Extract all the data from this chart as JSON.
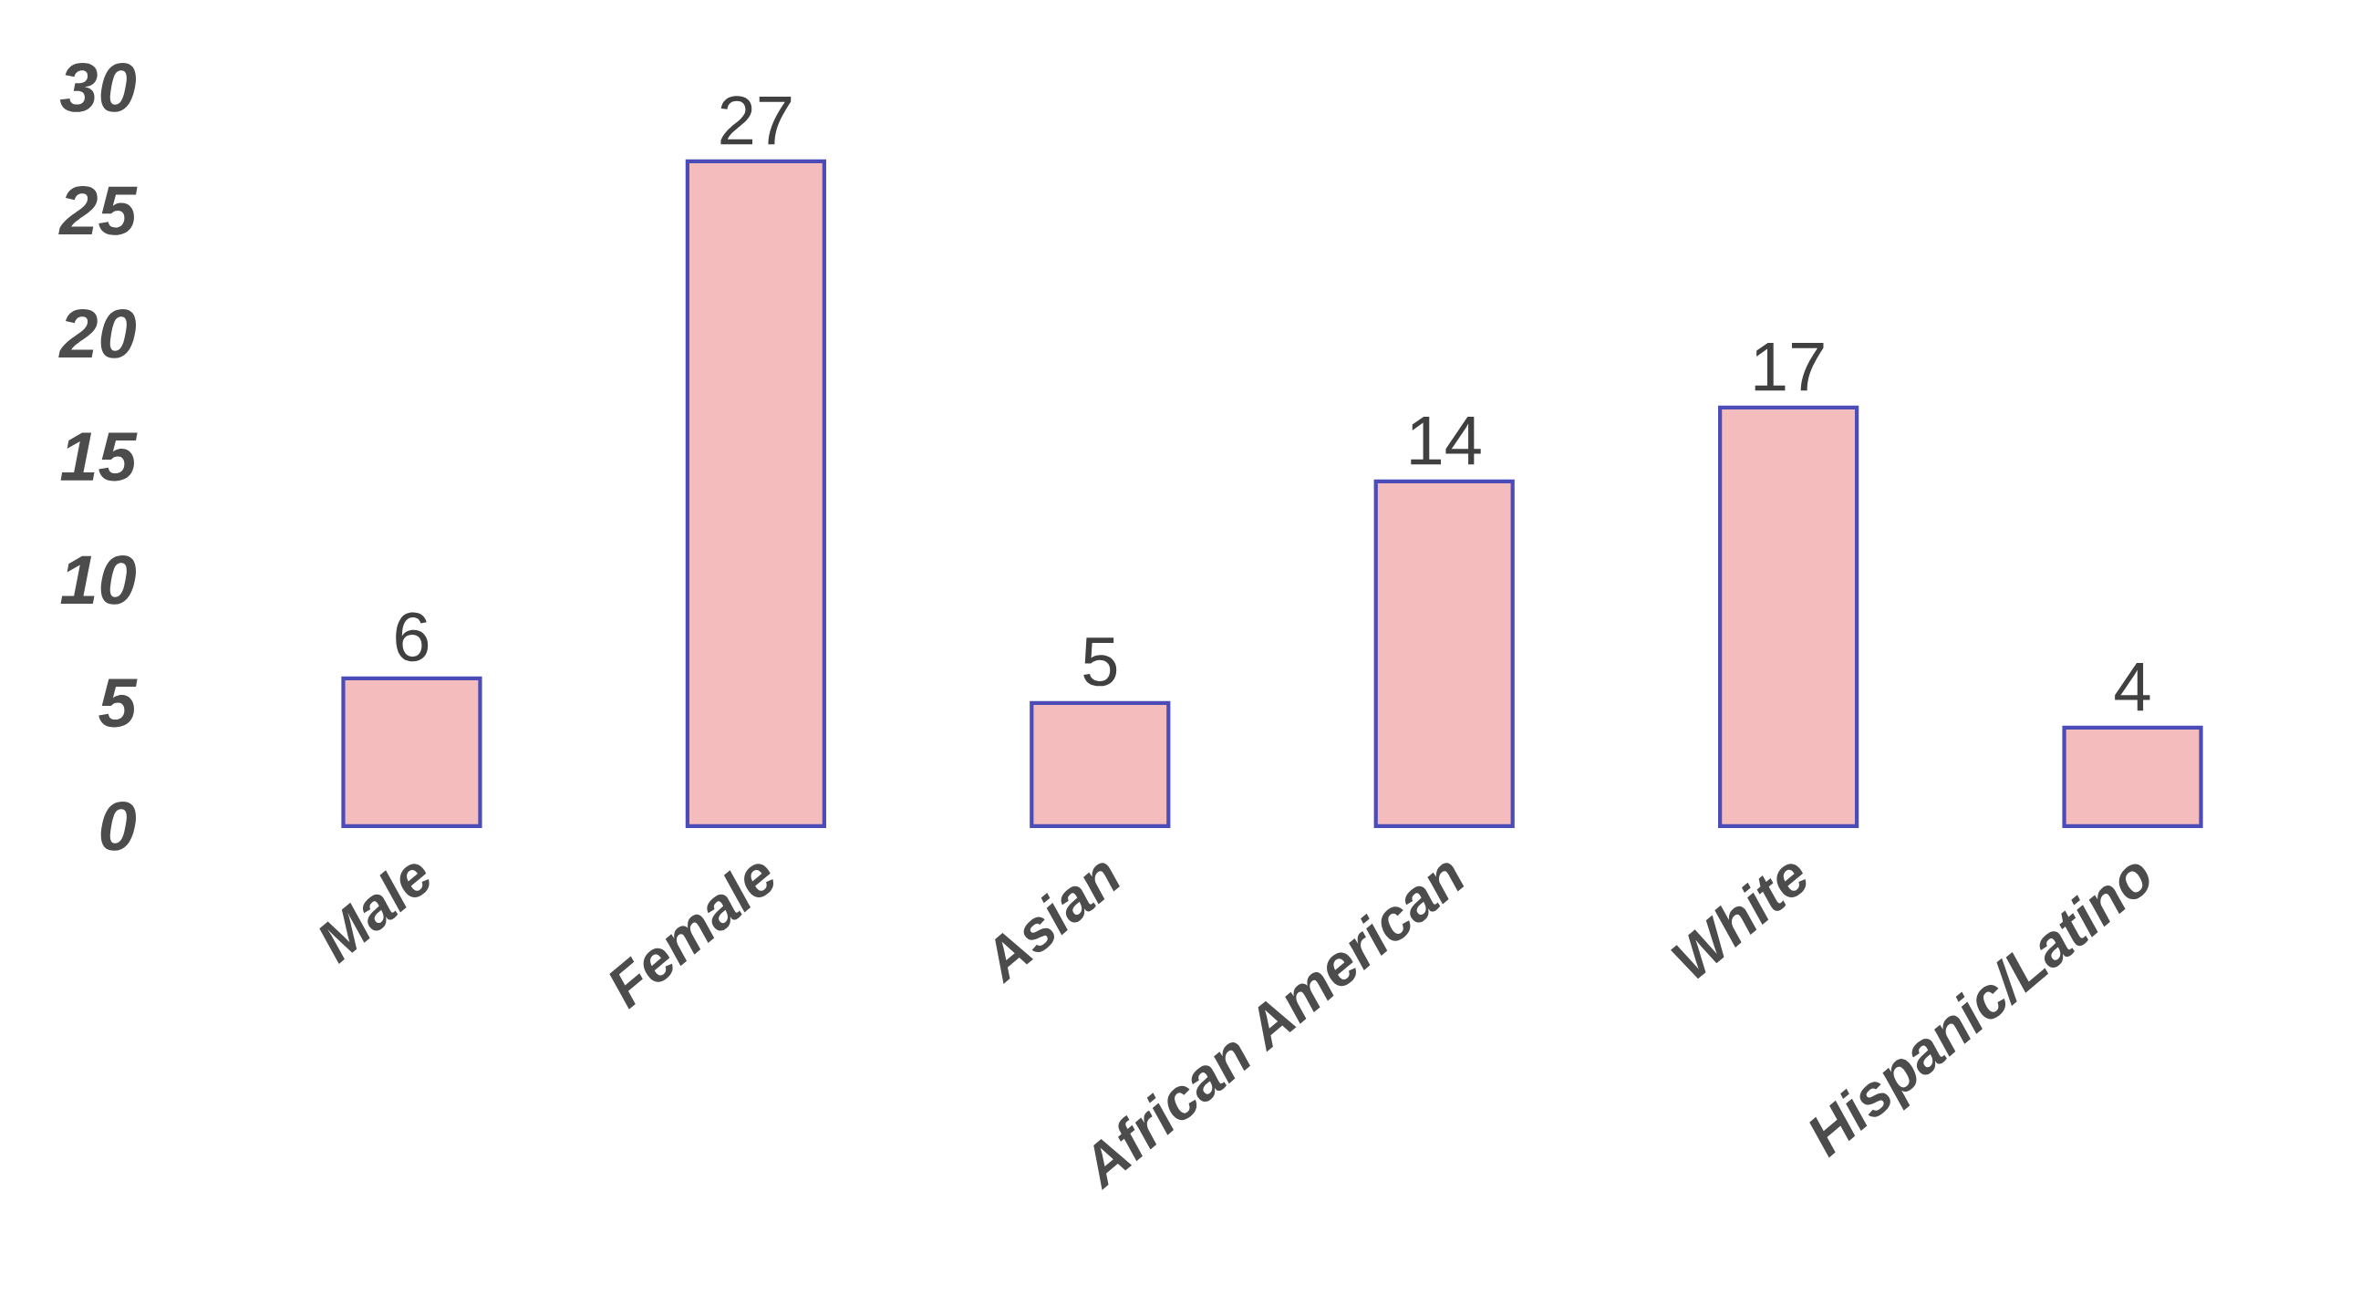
{
  "chart_data": {
    "type": "bar",
    "categories": [
      "Male",
      "Female",
      "Asian",
      "African American",
      "White",
      "Hispanic/Latino"
    ],
    "values": [
      6,
      27,
      5,
      14,
      17,
      4
    ],
    "color": "#f5bcbe",
    "ylim": [
      0,
      30
    ],
    "yticks": [
      0,
      5,
      10,
      15,
      20,
      25,
      30
    ],
    "data_labels": true
  }
}
